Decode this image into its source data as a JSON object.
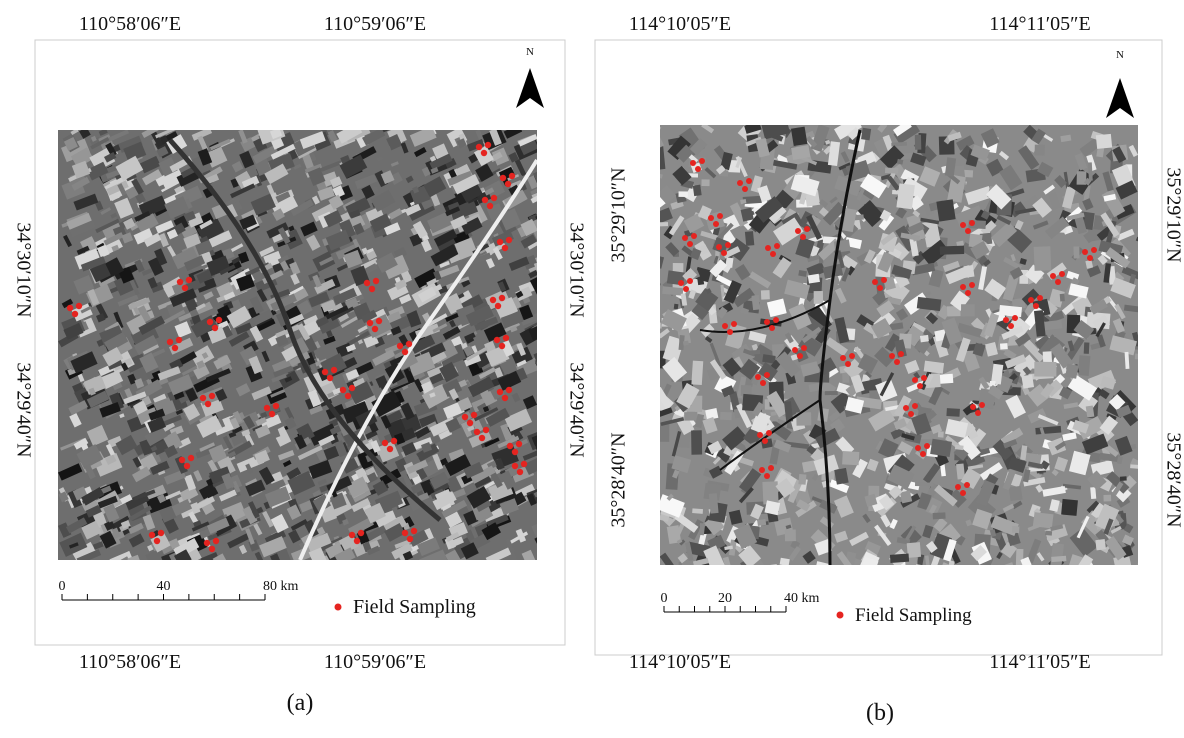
{
  "panels": [
    {
      "label": "(a)",
      "top_labels": [
        "110°58′06″E",
        "110°59′06″E"
      ],
      "bottom_labels": [
        "110°58′06″E",
        "110°59′06″E"
      ],
      "left_labels": [
        "34°30′10″N",
        "34°29′40″N"
      ],
      "right_labels": [
        "34°30′10″N",
        "34°29′40″N"
      ],
      "north": "N",
      "scale_labels": [
        "0",
        "40",
        "80 km"
      ],
      "legend": "Field Sampling"
    },
    {
      "label": "(b)",
      "top_labels": [
        "114°10′05″E",
        "114°11′05″E"
      ],
      "bottom_labels": [
        "114°10′05″E",
        "114°11′05″E"
      ],
      "left_labels": [
        "35°29′10″N",
        "35°28′40″N"
      ],
      "right_labels": [
        "35°29′10″N",
        "35°28′40″N"
      ],
      "north": "N",
      "scale_labels": [
        "0",
        "20",
        "40 km"
      ],
      "legend": "Field Sampling"
    }
  ]
}
